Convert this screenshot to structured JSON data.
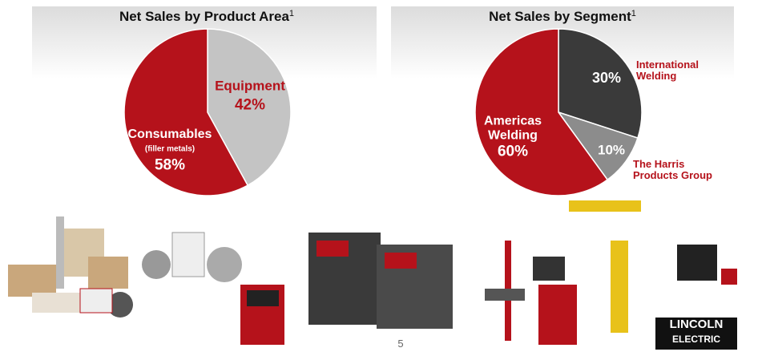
{
  "chart_data": [
    {
      "type": "pie",
      "title": "Net Sales by Product Area",
      "title_note": "1",
      "categories": [
        "Equipment",
        "Consumables"
      ],
      "values": [
        42,
        58
      ],
      "value_labels": [
        "42%",
        "58%"
      ],
      "colors": [
        "#c4c4c4",
        "#b5121b"
      ],
      "annotations": [
        "(filler metals)"
      ]
    },
    {
      "type": "pie",
      "title": "Net Sales by Segment",
      "title_note": "1",
      "categories": [
        "International Welding",
        "The Harris Products Group",
        "Americas Welding"
      ],
      "values": [
        30,
        10,
        60
      ],
      "value_labels": [
        "30%",
        "10%",
        "60%"
      ],
      "colors": [
        "#3a3a3a",
        "#8c8c8c",
        "#b5121b"
      ]
    }
  ],
  "page_number": "5",
  "logo": {
    "line1": "LINCOLN",
    "line2": "ELECTRIC"
  }
}
